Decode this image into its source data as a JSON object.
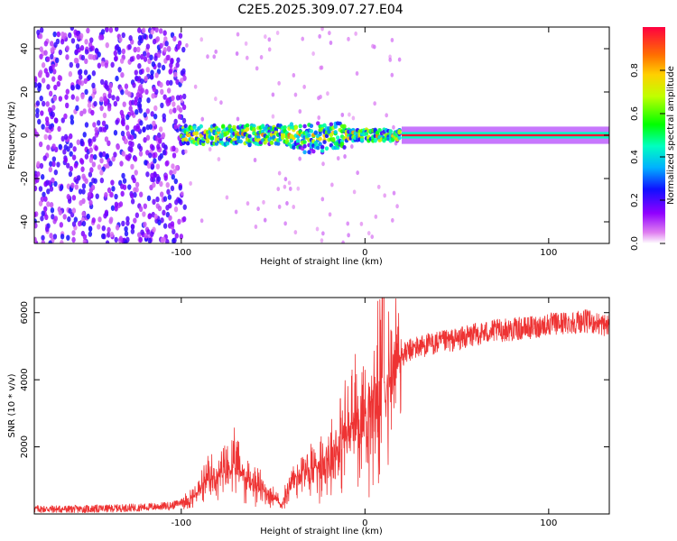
{
  "title": "C2E5.2025.309.07.27.E04",
  "colors": {
    "snr_line": "#ee3333",
    "axis": "#000000",
    "spectrogram_bg": "#ffffff"
  },
  "chart_data": [
    {
      "type": "heatmap",
      "name": "spectrogram",
      "xlabel": "Height of straight line (km)",
      "ylabel": "Frequency (Hz)",
      "xlim": [
        -180,
        133
      ],
      "ylim": [
        -50,
        50
      ],
      "xticks": [
        -100,
        0,
        100
      ],
      "xtick_labels": [
        "-100",
        "0",
        "100"
      ],
      "yticks": [
        -40,
        -20,
        0,
        20,
        40
      ],
      "ytick_labels": [
        "-40",
        "-20",
        "0",
        "20",
        "40"
      ],
      "colorbar": {
        "label": "Normalized spectral amplitude",
        "range": [
          0.0,
          1.0
        ],
        "ticks": [
          0.0,
          0.2,
          0.4,
          0.6,
          0.8
        ],
        "tick_labels": [
          "0.0",
          "0.2",
          "0.4",
          "0.6",
          "0.8"
        ],
        "colormap": "rainbow (white-violet-blue-cyan-green-yellow-orange-red)"
      },
      "regions": [
        {
          "x_range": [
            -180,
            -100
          ],
          "description": "broadband noise",
          "amplitude_range": [
            0.05,
            0.25
          ]
        },
        {
          "x_range": [
            -100,
            20
          ],
          "description": "signal near 0 Hz with spread",
          "amplitude_range": [
            0.2,
            0.9
          ]
        },
        {
          "x_range": [
            20,
            133
          ],
          "description": "narrow signal at 0 Hz",
          "amplitude_range": [
            0.9,
            1.0
          ]
        }
      ]
    },
    {
      "type": "line",
      "name": "snr",
      "xlabel": "Height of straight line (km)",
      "ylabel": "SNR (10 * v/v)",
      "xlim": [
        -180,
        133
      ],
      "ylim": [
        0,
        6450
      ],
      "xticks": [
        -100,
        0,
        100
      ],
      "xtick_labels": [
        "-100",
        "0",
        "100"
      ],
      "yticks": [
        2000,
        4000,
        6000
      ],
      "ytick_labels": [
        "2000",
        "4000",
        "6000"
      ],
      "series": [
        {
          "name": "SNR",
          "x": [
            -180,
            -160,
            -140,
            -120,
            -105,
            -100,
            -95,
            -90,
            -85,
            -80,
            -75,
            -70,
            -65,
            -60,
            -55,
            -50,
            -45,
            -40,
            -35,
            -30,
            -25,
            -20,
            -15,
            -10,
            -5,
            0,
            5,
            8,
            10,
            12,
            15,
            20,
            25,
            30,
            40,
            50,
            60,
            70,
            80,
            90,
            100,
            110,
            120,
            133
          ],
          "y": [
            150,
            140,
            160,
            200,
            250,
            350,
            450,
            700,
            1000,
            1100,
            1300,
            1400,
            1100,
            900,
            700,
            500,
            250,
            1000,
            1200,
            1300,
            1500,
            1700,
            2000,
            2400,
            2800,
            3000,
            3300,
            3600,
            4000,
            3600,
            4200,
            4700,
            4900,
            5000,
            5100,
            5200,
            5350,
            5450,
            5500,
            5550,
            5650,
            5700,
            5750,
            5600
          ]
        }
      ],
      "annotations": [
        {
          "x": 10,
          "y": 6450,
          "text": "",
          "note": "spike"
        }
      ]
    }
  ]
}
